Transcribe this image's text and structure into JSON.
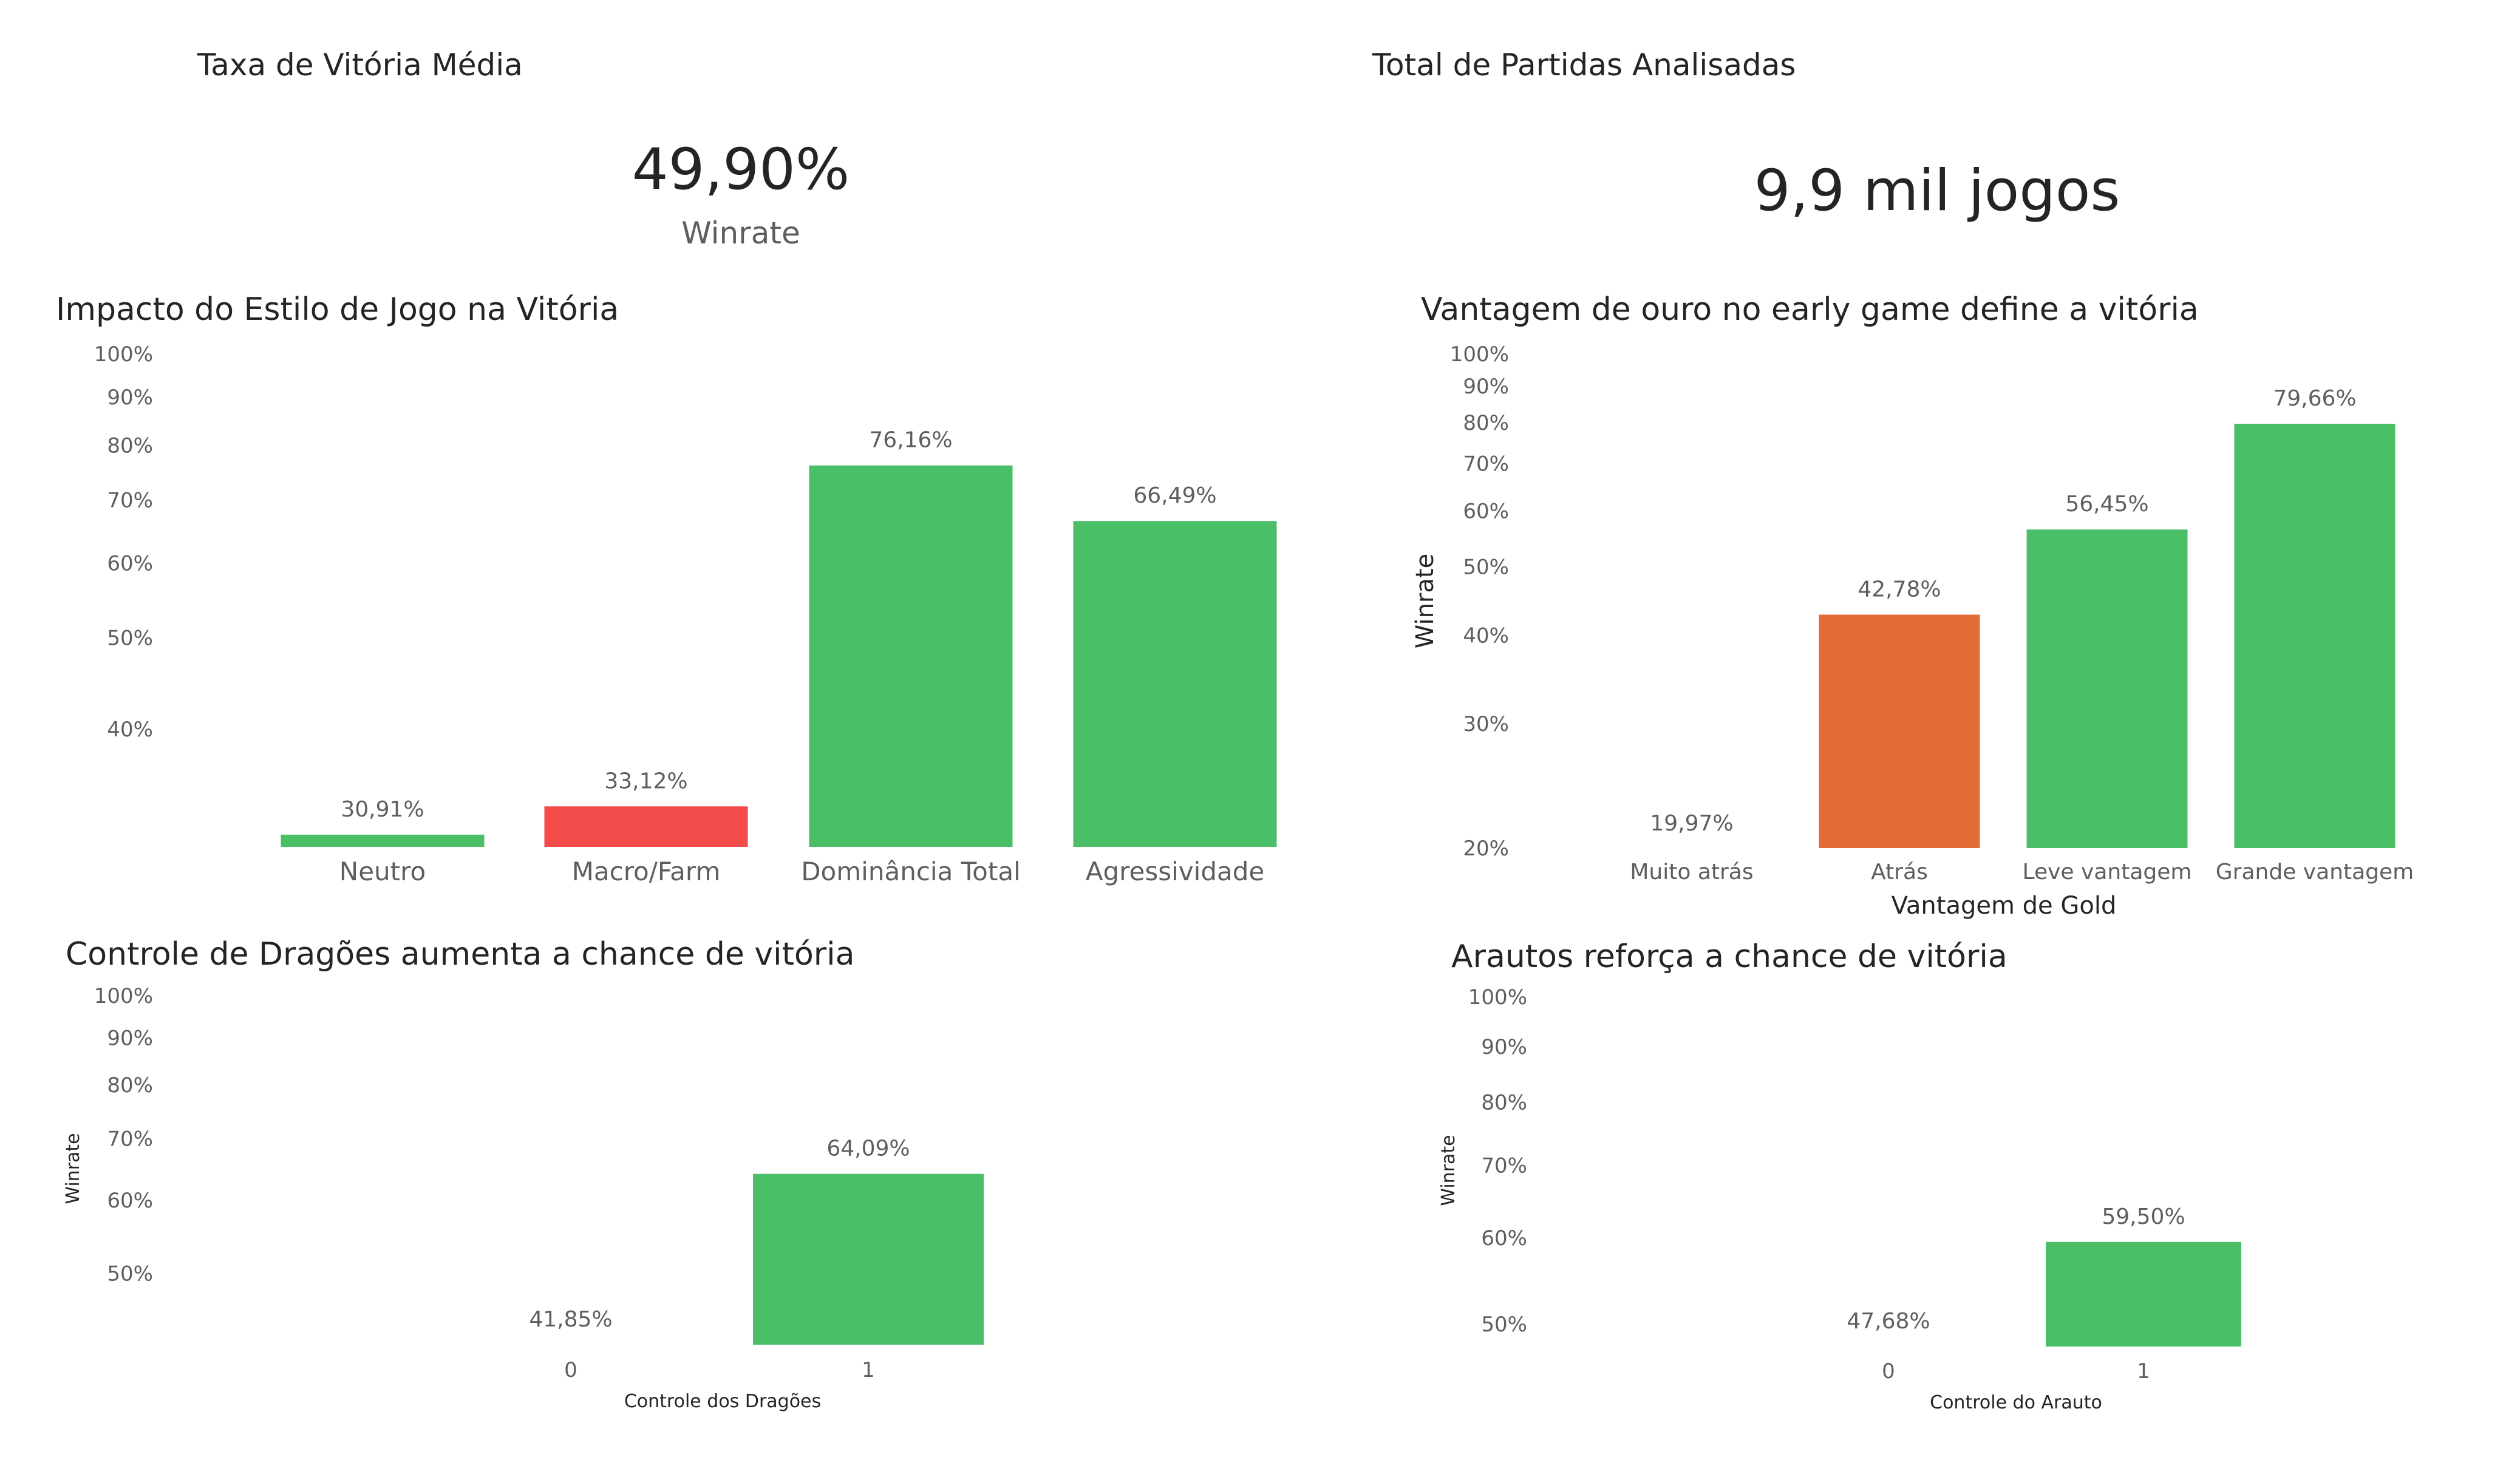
{
  "kpi_winrate": {
    "title": "Taxa de Vitória Média",
    "value": "49,90%",
    "label": "Winrate"
  },
  "kpi_games": {
    "title": "Total de Partidas Analisadas",
    "value": "9,9 mil jogos"
  },
  "chart_data": [
    {
      "type": "bar",
      "title": "Impacto do Estilo de Jogo na Vitória",
      "xlabel": "",
      "ylabel": "",
      "scale": "log",
      "ylim": [
        30,
        100
      ],
      "yticks": [
        40,
        50,
        60,
        70,
        80,
        90,
        100
      ],
      "tick_labels": [
        "40%",
        "50%",
        "60%",
        "70%",
        "80%",
        "90%",
        "100%"
      ],
      "categories": [
        "Neutro",
        "Macro/Farm",
        "Dominância Total",
        "Agressividade"
      ],
      "values": [
        30.91,
        33.12,
        76.16,
        66.49
      ],
      "data_labels": [
        "30,91%",
        "33,12%",
        "76,16%",
        "66,49%"
      ],
      "colors": [
        "#4abf68",
        "#f34a4a",
        "#4abf68",
        "#4abf68"
      ],
      "grid": false
    },
    {
      "type": "bar",
      "title": "Vantagem de ouro no early game define a vitória",
      "xlabel": "Vantagem de Gold",
      "ylabel": "Winrate",
      "scale": "log",
      "ylim": [
        20,
        100
      ],
      "yticks": [
        20,
        30,
        40,
        50,
        60,
        70,
        80,
        90,
        100
      ],
      "tick_labels": [
        "20%",
        "30%",
        "40%",
        "50%",
        "60%",
        "70%",
        "80%",
        "90%",
        "100%"
      ],
      "categories": [
        "Muito atrás",
        "Atrás",
        "Leve vantagem",
        "Grande vantagem"
      ],
      "values": [
        19.97,
        42.78,
        56.45,
        79.66
      ],
      "data_labels": [
        "19,97%",
        "42,78%",
        "56,45%",
        "79,66%"
      ],
      "colors": [
        "#4abf68",
        "#e46c36",
        "#4abf68",
        "#4abf68"
      ],
      "grid": false
    },
    {
      "type": "bar",
      "title": "Controle de Dragões aumenta a chance de vitória",
      "xlabel": "Controle dos Dragões",
      "ylabel": "Winrate",
      "scale": "log",
      "ylim": [
        41.85,
        100
      ],
      "yticks": [
        50,
        60,
        70,
        80,
        90,
        100
      ],
      "tick_labels": [
        "50%",
        "60%",
        "70%",
        "80%",
        "90%",
        "100%"
      ],
      "categories": [
        "0",
        "1"
      ],
      "values": [
        41.85,
        64.09
      ],
      "data_labels": [
        "41,85%",
        "64,09%"
      ],
      "colors": [
        "#4abf68",
        "#4abf68"
      ],
      "grid": false
    },
    {
      "type": "bar",
      "title": "Arautos reforça a chance de vitória",
      "xlabel": "Controle do Arauto",
      "ylabel": "Winrate",
      "scale": "log",
      "ylim": [
        47.68,
        100
      ],
      "yticks": [
        50,
        60,
        70,
        80,
        90,
        100
      ],
      "tick_labels": [
        "50%",
        "60%",
        "70%",
        "80%",
        "90%",
        "100%"
      ],
      "categories": [
        "0",
        "1"
      ],
      "values": [
        47.68,
        59.5
      ],
      "data_labels": [
        "47,68%",
        "59,50%"
      ],
      "colors": [
        "#4abf68",
        "#4abf68"
      ],
      "grid": false
    }
  ]
}
